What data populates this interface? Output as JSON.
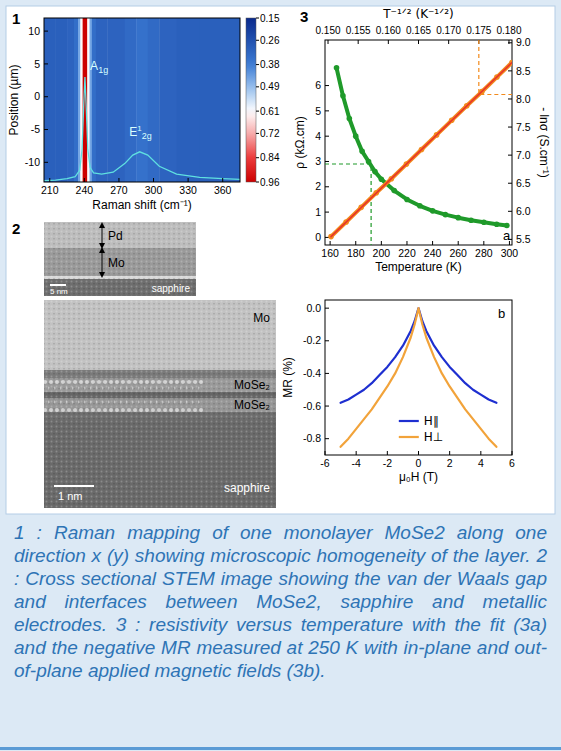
{
  "panel_labels": [
    "1",
    "2",
    "3"
  ],
  "chart_data": [
    {
      "type": "heatmap",
      "xlabel": "Raman shift (cm⁻¹)",
      "ylabel": "Position (µm)",
      "xlim": [
        205,
        375
      ],
      "ylim": [
        -13,
        12
      ],
      "xticks": [
        210,
        240,
        270,
        300,
        330,
        360
      ],
      "yticks": [
        -10,
        -5,
        0,
        5,
        10
      ],
      "bins": [
        205,
        215,
        225,
        231,
        234.5,
        236.5,
        238.5,
        242.5,
        244.5,
        246.5,
        250,
        260,
        275,
        285,
        295,
        305,
        320,
        340,
        375
      ],
      "values": [
        0.3,
        0.3,
        0.31,
        0.34,
        0.45,
        0.62,
        0.96,
        0.62,
        0.45,
        0.34,
        0.31,
        0.31,
        0.33,
        0.35,
        0.33,
        0.31,
        0.3,
        0.3
      ],
      "colorbar": {
        "range": [
          0.15,
          0.96
        ],
        "ticks": [
          0.15,
          0.26,
          0.38,
          0.49,
          0.61,
          0.72,
          0.84,
          0.96
        ]
      },
      "spectrum": {
        "color": "#5fe0e0",
        "x": [
          205,
          215,
          225,
          232,
          236,
          238,
          239.5,
          240.5,
          241.5,
          243,
          245,
          248,
          255,
          265,
          275,
          282,
          288,
          295,
          305,
          320,
          340,
          360,
          375
        ],
        "values": [
          -12.8,
          -12.7,
          -12.5,
          -12.2,
          -11.2,
          -8,
          -1,
          3,
          -1,
          -8,
          -10.8,
          -11.6,
          -11.8,
          -11.5,
          -10.2,
          -8.9,
          -8.4,
          -8.9,
          -10.6,
          -11.8,
          -12.3,
          -12.5,
          -12.6
        ]
      },
      "annotations": [
        {
          "text": "A1g",
          "x": 245,
          "y": 4
        },
        {
          "text": "E12g",
          "x": 279,
          "y": -6
        }
      ]
    },
    {
      "type": "line",
      "panel": "a",
      "xlabel": "Temperature (K)",
      "ylabel": "ρ (kΩ.cm)",
      "x2label": "T⁻¹ᐟ² (K⁻¹ᐟ²)",
      "y2label": "- lnσ (S.cm⁻¹)",
      "xlim": [
        156,
        302
      ],
      "ylim": [
        -0.3,
        7.8
      ],
      "xticks": [
        160,
        180,
        200,
        220,
        240,
        260,
        280,
        300
      ],
      "yticks": [
        0,
        1,
        2,
        3,
        4,
        5,
        6
      ],
      "x2lim": [
        0.1495,
        0.1805
      ],
      "x2ticks": [
        {
          "value": 0.15,
          "label": "0.150"
        },
        0.155,
        {
          "value": 0.16,
          "label": "0.160"
        },
        0.165,
        {
          "value": 0.17,
          "label": "0.170"
        },
        0.175,
        {
          "value": 0.18,
          "label": "0.180"
        }
      ],
      "y2lim": [
        5.4,
        9.05
      ],
      "y2ticks": [
        5.5,
        {
          "value": 6,
          "label": "6.0"
        },
        6.5,
        {
          "value": 7,
          "label": "7.0"
        },
        7.5,
        {
          "value": 8,
          "label": "8.0"
        },
        8.5,
        {
          "value": 9,
          "label": "9.0"
        }
      ],
      "series": [
        {
          "color": "#1f9a2a",
          "marker": "circle",
          "x": [
            165,
            170,
            175,
            180,
            185,
            190,
            195,
            200,
            210,
            220,
            230,
            240,
            250,
            260,
            270,
            280,
            290,
            298
          ],
          "values": [
            6.7,
            5.6,
            4.7,
            4.0,
            3.4,
            3.0,
            2.6,
            2.3,
            1.85,
            1.5,
            1.25,
            1.05,
            0.9,
            0.78,
            0.68,
            0.6,
            0.52,
            0.47
          ],
          "reference": {
            "x": 192,
            "y": 2.9
          }
        },
        {
          "color": "#f28a1c",
          "marker": "circle",
          "axis": "y2",
          "x": [
            0.1505,
            0.153,
            0.1555,
            0.158,
            0.1605,
            0.163,
            0.1655,
            0.168,
            0.1705,
            0.173,
            0.1755,
            0.178,
            0.1805
          ],
          "values": [
            5.55,
            5.81,
            6.07,
            6.33,
            6.58,
            6.84,
            7.1,
            7.36,
            7.62,
            7.88,
            8.13,
            8.39,
            8.65
          ],
          "reference": {
            "x": 0.175,
            "y": 8.08
          }
        },
        {
          "color": "#e8352a",
          "line_style": "solid",
          "axis": "y2",
          "x": [
            0.1505,
            0.1805
          ],
          "values": [
            5.55,
            8.65
          ]
        }
      ]
    },
    {
      "type": "line",
      "panel": "b",
      "xlabel": "μ₀H (T)",
      "ylabel": "MR (%)",
      "legend": "bottom",
      "xlim": [
        -6,
        6
      ],
      "ylim": [
        -0.9,
        0.05
      ],
      "xticks": [
        -6,
        -4,
        -2,
        0,
        2,
        4,
        6
      ],
      "yticks": [
        {
          "value": 0,
          "label": "0.0"
        },
        -0.2,
        -0.4,
        -0.6,
        -0.8
      ],
      "x": [
        -5,
        -4.5,
        -4,
        -3.5,
        -3,
        -2.5,
        -2,
        -1.5,
        -1,
        -0.5,
        -0.25,
        0,
        0.25,
        0.5,
        1,
        1.5,
        2,
        2.5,
        3,
        3.5,
        4,
        4.5,
        5
      ],
      "series": [
        {
          "name": "H∥",
          "color": "#1e2fd0",
          "values": [
            -0.58,
            -0.56,
            -0.53,
            -0.5,
            -0.46,
            -0.41,
            -0.36,
            -0.3,
            -0.23,
            -0.14,
            -0.08,
            0,
            -0.08,
            -0.14,
            -0.23,
            -0.3,
            -0.36,
            -0.41,
            -0.46,
            -0.5,
            -0.53,
            -0.56,
            -0.58
          ]
        },
        {
          "name": "H⊥",
          "color": "#f2a33a",
          "values": [
            -0.85,
            -0.8,
            -0.74,
            -0.68,
            -0.62,
            -0.55,
            -0.48,
            -0.4,
            -0.3,
            -0.18,
            -0.1,
            0,
            -0.1,
            -0.18,
            -0.3,
            -0.4,
            -0.48,
            -0.55,
            -0.62,
            -0.68,
            -0.74,
            -0.8,
            -0.85
          ]
        }
      ]
    }
  ],
  "stem": [
    {
      "labels": [
        "Pd",
        "Mo",
        "sapphire"
      ],
      "scale_bar": "5 nm"
    },
    {
      "labels": [
        "Mo",
        "MoSe₂",
        "MoSe₂",
        "sapphire"
      ],
      "scale_bar": "1 nm"
    }
  ],
  "caption": "1 : Raman mapping of one monolayer MoSe2 along one direction x (y) showing microscopic homogeneity of the  layer. 2 : Cross sectional STEM image showing the van der Waals gap and interfaces between MoSe2, sapphire and metallic electrodes. 3 : resistivity versus temperature with the fit (3a) and the negative MR measured at 250 K with in-plane and out-of-plane applied magnetic fields (3b)."
}
